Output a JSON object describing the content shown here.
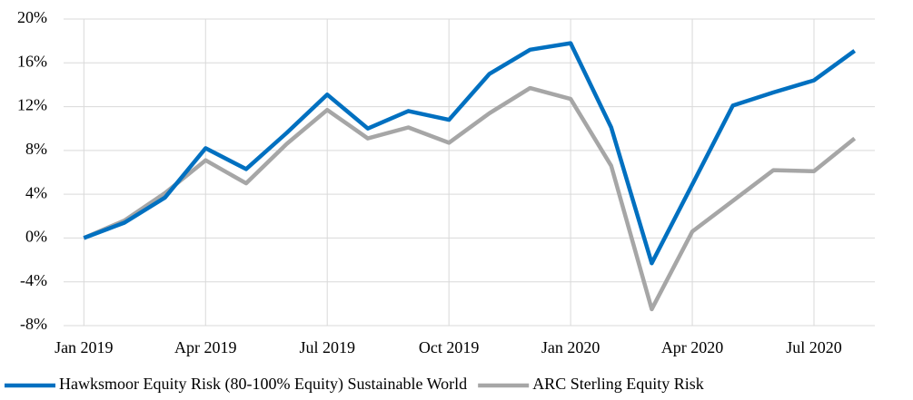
{
  "chart_data": {
    "type": "line",
    "categories": [
      "Jan 2019",
      null,
      null,
      "Apr 2019",
      null,
      null,
      "Jul 2019",
      null,
      null,
      "Oct 2019",
      null,
      null,
      "Jan 2020",
      null,
      null,
      "Apr 2020",
      null,
      null,
      "Jul 2020",
      null
    ],
    "series": [
      {
        "name": "Hawksmoor Equity Risk (80-100% Equity) Sustainable World",
        "color": "#0070c0",
        "values": [
          0,
          1.4,
          3.7,
          8.2,
          6.3,
          9.6,
          13.1,
          10.0,
          11.6,
          10.8,
          15.0,
          17.2,
          17.8,
          10.1,
          -2.3,
          4.9,
          12.1,
          13.3,
          14.4,
          17.1
        ]
      },
      {
        "name": "ARC Sterling Equity Risk",
        "color": "#a6a6a6",
        "values": [
          0,
          1.6,
          4.1,
          7.1,
          5.0,
          8.6,
          11.7,
          9.1,
          10.1,
          8.7,
          11.4,
          13.7,
          12.7,
          6.6,
          -6.5,
          0.6,
          3.4,
          6.2,
          6.1,
          9.1
        ]
      }
    ],
    "ylim": [
      -8,
      20
    ],
    "yticks": [
      {
        "value": -8,
        "label": "-8%"
      },
      {
        "value": -4,
        "label": "-4%"
      },
      {
        "value": 0,
        "label": "0%"
      },
      {
        "value": 4,
        "label": "4%"
      },
      {
        "value": 8,
        "label": "8%"
      },
      {
        "value": 12,
        "label": "12%"
      },
      {
        "value": 16,
        "label": "16%"
      },
      {
        "value": 20,
        "label": "20%"
      }
    ],
    "grid": true,
    "legend": "bottom"
  }
}
